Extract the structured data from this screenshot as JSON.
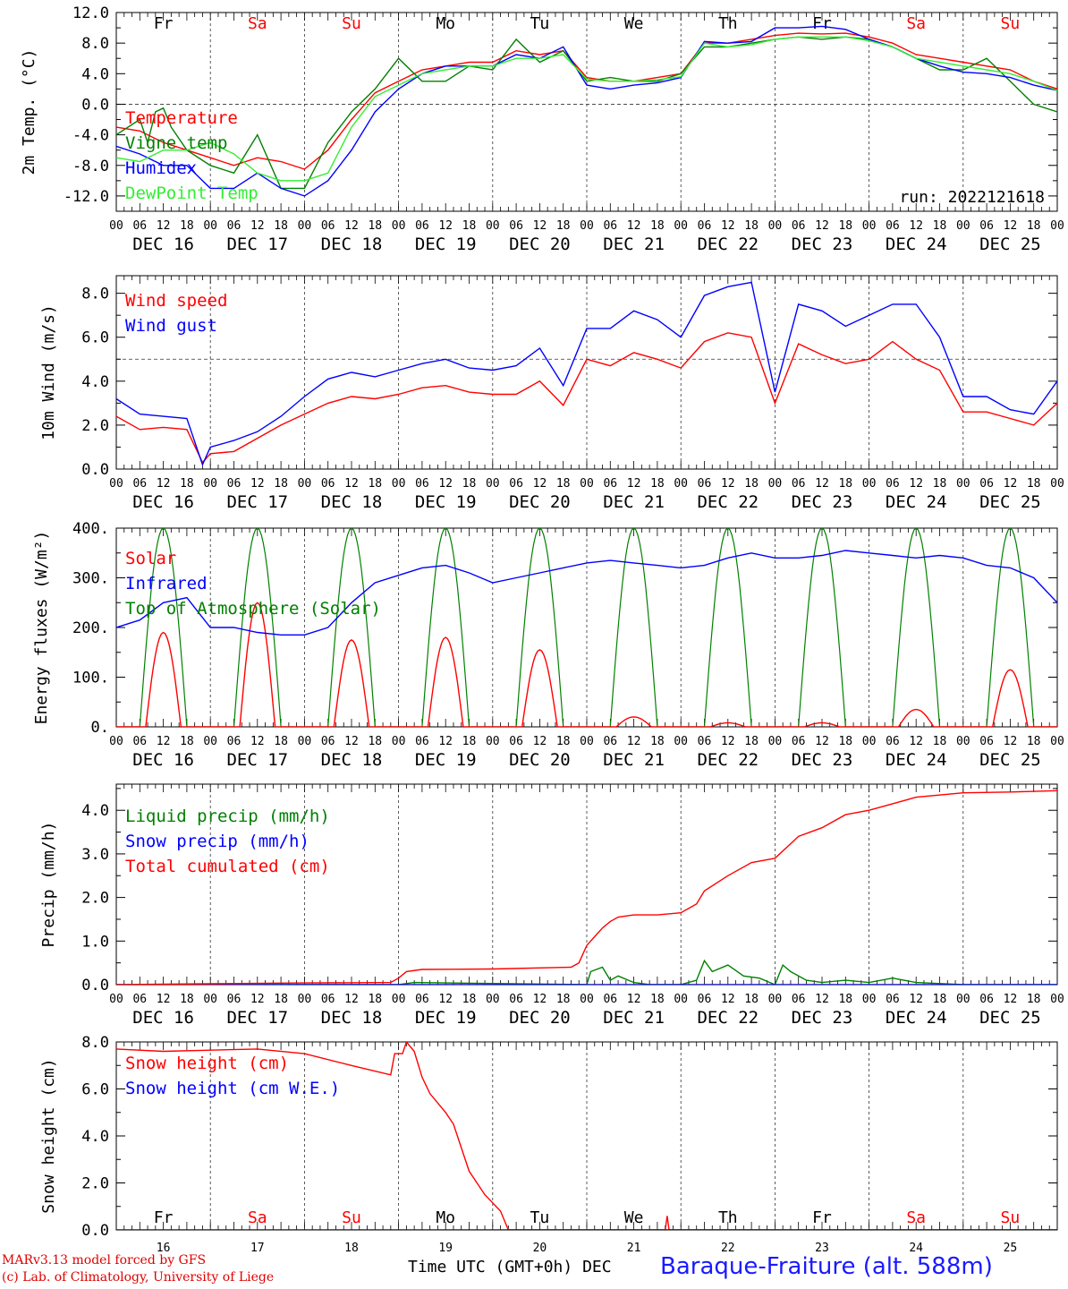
{
  "title_run": "run: 2022121618",
  "station": "Baraque-Fraiture (alt. 588m)",
  "credits": [
    "MARv3.13 model forced by GFS",
    "(c) Lab. of Climatology, University of Liege"
  ],
  "x_axis_title": "Time UTC (GMT+0h)",
  "x_month": "DEC",
  "hour_ticks": [
    "00",
    "06",
    "12",
    "18"
  ],
  "day_labels": [
    "DEC 16",
    "DEC 17",
    "DEC 18",
    "DEC 19",
    "DEC 20",
    "DEC 21",
    "DEC 22",
    "DEC 23",
    "DEC 24",
    "DEC 25"
  ],
  "day_numbers": [
    "16",
    "17",
    "18",
    "19",
    "20",
    "21",
    "22",
    "23",
    "24",
    "25"
  ],
  "weekdays": [
    "Fr",
    "Sa",
    "Su",
    "Mo",
    "Tu",
    "We",
    "Th",
    "Fr",
    "Sa",
    "Su"
  ],
  "weekend_flags": [
    false,
    true,
    true,
    false,
    false,
    false,
    false,
    false,
    true,
    true
  ],
  "colors": {
    "red": "#ff0000",
    "green": "#008000",
    "blue": "#0000ff",
    "lime": "#33ee33",
    "black": "#000000"
  },
  "chart_data": [
    {
      "type": "line",
      "ylabel": "2m Temp. (°C)",
      "ylim": [
        -14,
        12
      ],
      "yticks": [
        "-12.0",
        "-8.0",
        "-4.0",
        "0.0",
        "4.0",
        "8.0",
        "12.0"
      ],
      "ytick_values": [
        -12,
        -8,
        -4,
        0,
        4,
        8,
        12
      ],
      "dashed_ref": 0,
      "x_unit": "hours since 2022-12-16 00 UTC",
      "xlim": [
        0,
        240
      ],
      "legend_placement": "left",
      "series": [
        {
          "name": "Temperature",
          "color": "red",
          "x": [
            0,
            6,
            12,
            18,
            24,
            30,
            36,
            42,
            48,
            54,
            60,
            66,
            72,
            78,
            84,
            90,
            96,
            102,
            108,
            114,
            120,
            126,
            132,
            138,
            144,
            150,
            156,
            162,
            168,
            174,
            180,
            186,
            192,
            198,
            204,
            210,
            216,
            222,
            228,
            234,
            240
          ],
          "values": [
            -3,
            -3.5,
            -5,
            -6,
            -7,
            -8,
            -7,
            -7.5,
            -8.5,
            -6,
            -2,
            1.5,
            3,
            4.5,
            5,
            5.5,
            5.5,
            7,
            6.5,
            7,
            3.5,
            3,
            3,
            3.5,
            4,
            8,
            8,
            8.5,
            9,
            9.3,
            9.2,
            9.3,
            8.8,
            8,
            6.5,
            6,
            5.5,
            5,
            4.5,
            3,
            2
          ]
        },
        {
          "name": "Vigne temp",
          "color": "green",
          "x": [
            0,
            6,
            8,
            10,
            12,
            14,
            18,
            24,
            30,
            36,
            42,
            48,
            54,
            60,
            66,
            72,
            78,
            84,
            90,
            96,
            102,
            108,
            114,
            120,
            126,
            132,
            138,
            144,
            150,
            156,
            162,
            168,
            174,
            180,
            186,
            192,
            198,
            204,
            210,
            216,
            222,
            228,
            234,
            240
          ],
          "values": [
            -4,
            -2,
            -5,
            -1,
            -0.5,
            -3,
            -6,
            -8,
            -9,
            -4,
            -11,
            -11,
            -5,
            -1,
            2,
            6,
            3,
            3,
            5,
            4.5,
            8.5,
            5.5,
            7,
            3,
            3.5,
            3,
            3,
            4,
            7.5,
            7.5,
            8,
            8.5,
            8.8,
            8.5,
            8.8,
            8.5,
            7.5,
            6,
            4.5,
            4.5,
            6,
            3,
            0,
            -1
          ]
        },
        {
          "name": "Humidex",
          "color": "blue",
          "x": [
            0,
            6,
            12,
            18,
            24,
            30,
            36,
            42,
            48,
            54,
            60,
            66,
            72,
            78,
            84,
            90,
            96,
            102,
            108,
            114,
            120,
            126,
            132,
            138,
            144,
            150,
            156,
            162,
            168,
            174,
            180,
            186,
            192,
            198,
            204,
            210,
            216,
            222,
            228,
            234,
            240
          ],
          "values": [
            -5.5,
            -6.5,
            -8,
            -8,
            -11,
            -11,
            -9,
            -11,
            -12,
            -10,
            -6,
            -1,
            2,
            4,
            5,
            5,
            5,
            6.5,
            6,
            7.5,
            2.5,
            2,
            2.5,
            2.8,
            3.5,
            8.2,
            8,
            8.2,
            10,
            10,
            10.2,
            9.8,
            8.5,
            7.5,
            6,
            5,
            4.2,
            4,
            3.5,
            2.5,
            1.8
          ]
        },
        {
          "name": "DewPoint Temp",
          "color": "lime",
          "x": [
            0,
            6,
            12,
            18,
            24,
            30,
            36,
            42,
            48,
            54,
            60,
            66,
            72,
            78,
            84,
            90,
            96,
            102,
            108,
            114,
            120,
            126,
            132,
            138,
            144,
            150,
            156,
            162,
            168,
            174,
            180,
            186,
            192,
            198,
            204,
            210,
            216,
            222,
            228,
            234,
            240
          ],
          "values": [
            -7,
            -7.5,
            -6,
            -6,
            -5,
            -6.5,
            -9,
            -10,
            -10,
            -9,
            -3,
            1,
            2.5,
            4,
            4.5,
            5,
            5,
            6,
            6,
            6.5,
            3.3,
            3,
            3,
            3.2,
            3.6,
            8,
            7.5,
            7.8,
            8.5,
            8.8,
            8.8,
            8.8,
            8.3,
            7.5,
            6,
            5.5,
            5,
            4.5,
            4,
            3,
            1.8
          ]
        }
      ],
      "annotations": [
        "run: 2022121618"
      ]
    },
    {
      "type": "line",
      "ylabel": "10m Wind (m/s)",
      "ylim": [
        0,
        8.8
      ],
      "yticks": [
        "0.0",
        "2.0",
        "4.0",
        "6.0",
        "8.0"
      ],
      "ytick_values": [
        0,
        2,
        4,
        6,
        8
      ],
      "dashed_ref": 5,
      "xlim": [
        0,
        240
      ],
      "legend_placement": "left",
      "series": [
        {
          "name": "Wind speed",
          "color": "red",
          "x": [
            0,
            6,
            12,
            18,
            22,
            24,
            30,
            36,
            42,
            48,
            54,
            60,
            66,
            72,
            78,
            84,
            90,
            96,
            102,
            108,
            114,
            120,
            126,
            132,
            138,
            144,
            150,
            156,
            162,
            168,
            174,
            180,
            186,
            192,
            198,
            204,
            210,
            216,
            222,
            228,
            234,
            240
          ],
          "values": [
            2.4,
            1.8,
            1.9,
            1.8,
            0.3,
            0.7,
            0.8,
            1.4,
            2.0,
            2.5,
            3.0,
            3.3,
            3.2,
            3.4,
            3.7,
            3.8,
            3.5,
            3.4,
            3.4,
            4.0,
            2.9,
            5.0,
            4.7,
            5.3,
            5.0,
            4.6,
            5.8,
            6.2,
            6.0,
            3.0,
            5.7,
            5.2,
            4.8,
            5.0,
            5.8,
            5.0,
            4.5,
            2.6,
            2.6,
            2.3,
            2.0,
            3.0
          ]
        },
        {
          "name": "Wind gust",
          "color": "blue",
          "x": [
            0,
            6,
            12,
            18,
            22,
            24,
            30,
            36,
            42,
            48,
            54,
            60,
            66,
            72,
            78,
            84,
            90,
            96,
            102,
            108,
            114,
            120,
            126,
            132,
            138,
            144,
            150,
            156,
            162,
            168,
            174,
            180,
            186,
            192,
            198,
            204,
            210,
            216,
            222,
            228,
            234,
            240
          ],
          "values": [
            3.2,
            2.5,
            2.4,
            2.3,
            0.2,
            1.0,
            1.3,
            1.7,
            2.4,
            3.3,
            4.1,
            4.4,
            4.2,
            4.5,
            4.8,
            5.0,
            4.6,
            4.5,
            4.7,
            5.5,
            3.8,
            6.4,
            6.4,
            7.2,
            6.8,
            6.0,
            7.9,
            8.3,
            8.5,
            3.5,
            7.5,
            7.2,
            6.5,
            7.0,
            7.5,
            7.5,
            6.0,
            3.3,
            3.3,
            2.7,
            2.5,
            4.0
          ]
        }
      ]
    },
    {
      "type": "line",
      "ylabel": "Energy fluxes (W/m²)",
      "ylim": [
        0,
        400
      ],
      "yticks": [
        "0.",
        "100.",
        "200.",
        "300.",
        "400."
      ],
      "ytick_values": [
        0,
        100,
        200,
        300,
        400
      ],
      "xlim": [
        0,
        240
      ],
      "legend_placement": "left",
      "solar_peaks": [
        190,
        250,
        175,
        180,
        155,
        20,
        8,
        8,
        35,
        115
      ],
      "toa_peak": 400,
      "series": [
        {
          "name": "Solar",
          "color": "red"
        },
        {
          "name": "Infrared",
          "color": "blue",
          "x": [
            0,
            6,
            12,
            18,
            24,
            30,
            36,
            42,
            48,
            54,
            60,
            66,
            72,
            78,
            84,
            90,
            96,
            102,
            108,
            114,
            120,
            126,
            132,
            138,
            144,
            150,
            156,
            162,
            168,
            174,
            180,
            186,
            192,
            198,
            204,
            210,
            216,
            222,
            228,
            234,
            240
          ],
          "values": [
            200,
            215,
            250,
            260,
            200,
            200,
            190,
            185,
            185,
            200,
            250,
            290,
            305,
            320,
            325,
            310,
            290,
            300,
            310,
            320,
            330,
            335,
            330,
            325,
            320,
            325,
            340,
            350,
            340,
            340,
            345,
            355,
            350,
            345,
            340,
            345,
            340,
            325,
            320,
            300,
            250
          ]
        },
        {
          "name": "Top of Atmosphere (Solar)",
          "color": "green"
        }
      ]
    },
    {
      "type": "line",
      "ylabel": "Precip (mm/h)",
      "ylim": [
        0,
        4.6
      ],
      "yticks": [
        "0.0",
        "1.0",
        "2.0",
        "3.0",
        "4.0"
      ],
      "ytick_values": [
        0,
        1,
        2,
        3,
        4
      ],
      "xlim": [
        0,
        240
      ],
      "legend_placement": "left",
      "series": [
        {
          "name": "Liquid precip (mm/h)",
          "color": "green",
          "x": [
            0,
            72,
            76,
            120,
            121,
            124,
            126,
            128,
            132,
            136,
            144,
            148,
            150,
            152,
            156,
            160,
            164,
            168,
            170,
            172,
            176,
            180,
            186,
            192,
            198,
            204,
            216,
            240
          ],
          "values": [
            0,
            0,
            0.05,
            0,
            0.3,
            0.4,
            0.1,
            0.2,
            0.05,
            0,
            0,
            0.1,
            0.55,
            0.3,
            0.45,
            0.2,
            0.15,
            0,
            0.45,
            0.3,
            0.1,
            0.05,
            0.1,
            0.05,
            0.15,
            0.05,
            0,
            0
          ]
        },
        {
          "name": "Snow precip (mm/h)",
          "color": "blue",
          "x": [
            0,
            240
          ],
          "values": [
            0,
            0
          ]
        },
        {
          "name": "Total cumulated (cm)",
          "color": "red",
          "x": [
            0,
            24,
            48,
            70,
            72,
            74,
            78,
            96,
            116,
            118,
            120,
            122,
            124,
            126,
            128,
            132,
            138,
            144,
            148,
            150,
            156,
            162,
            168,
            174,
            180,
            186,
            192,
            198,
            204,
            216,
            228,
            240
          ],
          "values": [
            0,
            0.02,
            0.04,
            0.05,
            0.15,
            0.3,
            0.35,
            0.36,
            0.4,
            0.5,
            0.9,
            1.1,
            1.3,
            1.45,
            1.55,
            1.6,
            1.6,
            1.65,
            1.85,
            2.15,
            2.5,
            2.8,
            2.9,
            3.4,
            3.6,
            3.9,
            4.0,
            4.15,
            4.3,
            4.4,
            4.42,
            4.45
          ]
        }
      ]
    },
    {
      "type": "line",
      "ylabel": "Snow height (cm)",
      "ylim": [
        0,
        8
      ],
      "yticks": [
        "0.0",
        "2.0",
        "4.0",
        "6.0",
        "8.0"
      ],
      "ytick_values": [
        0,
        2,
        4,
        6,
        8
      ],
      "xlim": [
        0,
        240
      ],
      "legend_placement": "top-left",
      "series": [
        {
          "name": "Snow height (cm)",
          "color": "red",
          "x": [
            0,
            12,
            24,
            36,
            48,
            60,
            70,
            71,
            73,
            74,
            76,
            78,
            80,
            84,
            86,
            88,
            90,
            94,
            98,
            100,
            120,
            140,
            140.5,
            141,
            240
          ],
          "values": [
            7.7,
            7.6,
            7.65,
            7.7,
            7.5,
            7.0,
            6.6,
            7.5,
            7.5,
            8.0,
            7.6,
            6.5,
            5.8,
            5.0,
            4.5,
            3.5,
            2.5,
            1.5,
            0.8,
            0,
            0,
            0,
            0.6,
            0,
            0
          ]
        },
        {
          "name": "Snow height (cm W.E.)",
          "color": "blue",
          "x": [
            0,
            240
          ],
          "values": [
            0,
            0
          ]
        }
      ]
    }
  ]
}
